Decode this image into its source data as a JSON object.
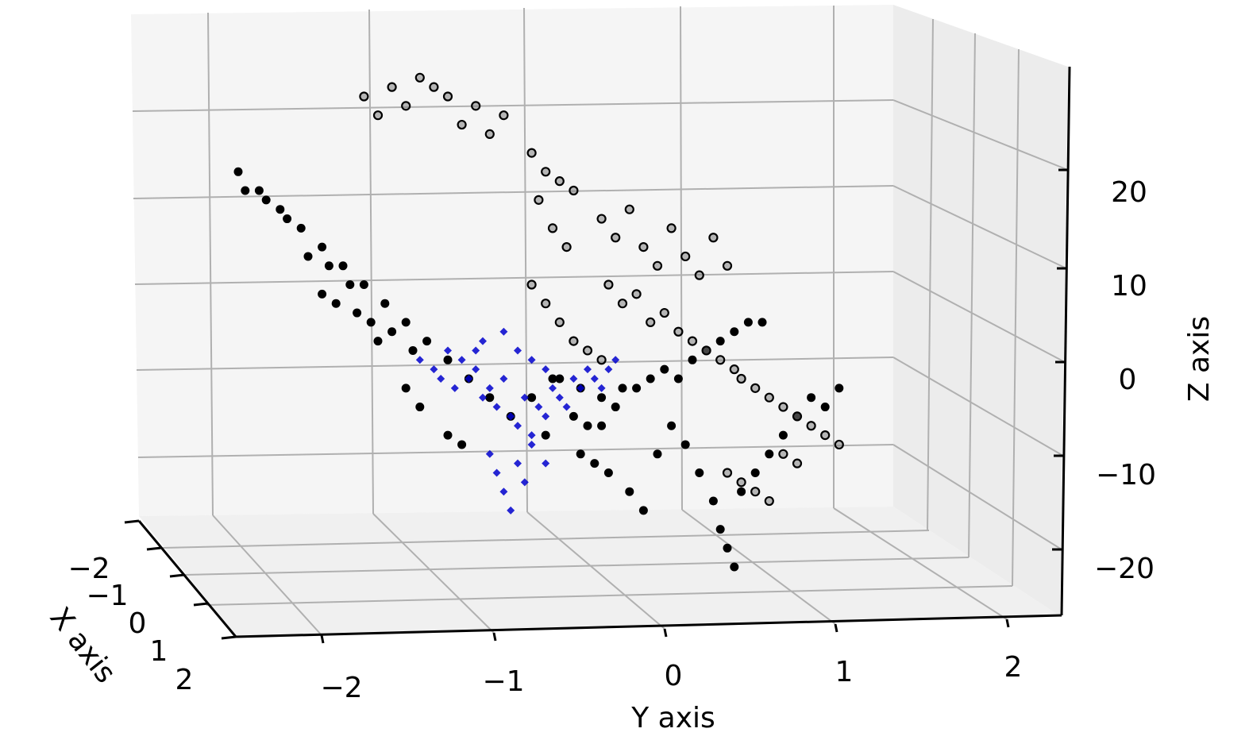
{
  "chart_data": {
    "type": "scatter",
    "projection": "3d",
    "title": "",
    "xlabel": "X axis",
    "ylabel": "Y axis",
    "zlabel": "Z axis",
    "xlim": [
      -2.5,
      2.5
    ],
    "ylim": [
      -2.5,
      2.5
    ],
    "zlim": [
      -27,
      28
    ],
    "x_ticks": [
      {
        "value": -2,
        "label": "−2"
      },
      {
        "value": -1,
        "label": "−1"
      },
      {
        "value": 0,
        "label": "0"
      },
      {
        "value": 1,
        "label": "1"
      },
      {
        "value": 2,
        "label": "2"
      }
    ],
    "y_ticks": [
      {
        "value": -2,
        "label": "−2"
      },
      {
        "value": -1,
        "label": "−1"
      },
      {
        "value": 0,
        "label": "0"
      },
      {
        "value": 1,
        "label": "1"
      },
      {
        "value": 2,
        "label": "2"
      }
    ],
    "z_ticks": [
      {
        "value": 20,
        "label": "20"
      },
      {
        "value": 10,
        "label": "10"
      },
      {
        "value": 0,
        "label": "0"
      },
      {
        "value": -10,
        "label": "−10"
      },
      {
        "value": -20,
        "label": "−20"
      }
    ],
    "grid": true,
    "legend": "none",
    "series": [
      {
        "marker": "circle",
        "color": "#000000",
        "points": [
          [
            0,
            -2.5,
            22
          ],
          [
            0,
            -2.35,
            20
          ],
          [
            0,
            -2.2,
            18
          ],
          [
            0,
            -2.05,
            16
          ],
          [
            0,
            -1.9,
            14
          ],
          [
            0,
            -1.75,
            12
          ],
          [
            0,
            -1.6,
            10
          ],
          [
            0,
            -1.45,
            8
          ],
          [
            0,
            -1.3,
            6
          ],
          [
            0,
            -1.15,
            4
          ],
          [
            0,
            -1.0,
            2
          ],
          [
            0,
            -0.85,
            0
          ],
          [
            0,
            -2.45,
            20
          ],
          [
            0,
            -2.3,
            19
          ],
          [
            0,
            -2.15,
            17
          ],
          [
            0,
            -2.0,
            13
          ],
          [
            0,
            -1.85,
            12
          ],
          [
            0,
            -1.7,
            10
          ],
          [
            0,
            -1.55,
            6
          ],
          [
            0,
            -1.4,
            5
          ],
          [
            0,
            -1.25,
            3
          ],
          [
            0,
            -1.9,
            9
          ],
          [
            0,
            -1.8,
            8
          ],
          [
            0,
            -1.65,
            7
          ],
          [
            0,
            -1.5,
            4
          ],
          [
            0,
            -1.3,
            -1
          ],
          [
            0,
            -1.2,
            -3
          ],
          [
            0,
            -1.0,
            -6
          ],
          [
            0,
            -0.9,
            -7
          ],
          [
            0,
            -0.7,
            -2
          ],
          [
            0,
            -0.55,
            -4
          ],
          [
            0,
            -0.4,
            -2
          ],
          [
            0,
            -0.3,
            -6
          ],
          [
            0,
            -0.25,
            0
          ],
          [
            0,
            -0.1,
            -4
          ],
          [
            0,
            0.0,
            -5
          ],
          [
            0,
            0.1,
            -5
          ],
          [
            0,
            0.2,
            -3
          ],
          [
            0,
            -0.05,
            -8
          ],
          [
            0,
            0.05,
            -9
          ],
          [
            0,
            0.15,
            -10
          ],
          [
            0,
            0.3,
            -12
          ],
          [
            0,
            0.4,
            -14
          ],
          [
            0,
            0.5,
            -8
          ],
          [
            0,
            0.6,
            -5
          ],
          [
            0,
            0.7,
            -7
          ],
          [
            0,
            0.8,
            -10
          ],
          [
            0,
            0.9,
            -13
          ],
          [
            0,
            0.95,
            -16
          ],
          [
            0,
            1.0,
            -18
          ],
          [
            0,
            1.05,
            -20
          ],
          [
            0,
            1.1,
            -12
          ],
          [
            0,
            1.2,
            -10
          ],
          [
            0,
            1.3,
            -8
          ],
          [
            0,
            1.4,
            -6
          ],
          [
            0,
            1.5,
            -4
          ],
          [
            0,
            1.6,
            -2
          ],
          [
            0,
            1.7,
            -3
          ],
          [
            0,
            1.8,
            -1
          ],
          [
            0,
            0.35,
            -1
          ],
          [
            0,
            0.45,
            0
          ],
          [
            0,
            0.55,
            1
          ],
          [
            0,
            0.65,
            0
          ],
          [
            0,
            0.75,
            2
          ],
          [
            0,
            0.85,
            3
          ],
          [
            0,
            0.95,
            4
          ],
          [
            0,
            1.05,
            5
          ],
          [
            0,
            1.15,
            6
          ],
          [
            0,
            1.25,
            6
          ],
          [
            0,
            -0.2,
            0
          ],
          [
            0,
            -0.05,
            -1
          ],
          [
            0,
            0.1,
            -2
          ],
          [
            0,
            0.25,
            -1
          ]
        ]
      },
      {
        "marker": "ring",
        "color": "#000000",
        "points": [
          [
            0,
            -1.6,
            30
          ],
          [
            0,
            -1.4,
            31
          ],
          [
            0,
            -1.2,
            32
          ],
          [
            0,
            -1.0,
            30
          ],
          [
            0,
            -0.8,
            29
          ],
          [
            0,
            -0.6,
            28
          ],
          [
            0,
            -1.5,
            28
          ],
          [
            0,
            -1.3,
            29
          ],
          [
            0,
            -1.1,
            31
          ],
          [
            0,
            -0.9,
            27
          ],
          [
            0,
            -0.7,
            26
          ],
          [
            0,
            -0.4,
            24
          ],
          [
            0,
            -0.3,
            22
          ],
          [
            0,
            -0.2,
            21
          ],
          [
            0,
            -0.35,
            19
          ],
          [
            0,
            -0.1,
            20
          ],
          [
            0,
            -0.25,
            16
          ],
          [
            0,
            -0.15,
            14
          ],
          [
            0,
            0.1,
            17
          ],
          [
            0,
            0.2,
            15
          ],
          [
            0,
            0.3,
            18
          ],
          [
            0,
            0.4,
            14
          ],
          [
            0,
            0.5,
            12
          ],
          [
            0,
            0.6,
            16
          ],
          [
            0,
            0.7,
            13
          ],
          [
            0,
            0.8,
            11
          ],
          [
            0,
            0.9,
            15
          ],
          [
            0,
            1.0,
            12
          ],
          [
            0,
            0.15,
            10
          ],
          [
            0,
            0.25,
            8
          ],
          [
            0,
            0.35,
            9
          ],
          [
            0,
            0.45,
            6
          ],
          [
            0,
            0.55,
            7
          ],
          [
            0,
            0.65,
            5
          ],
          [
            0,
            0.75,
            4
          ],
          [
            0,
            0.85,
            3
          ],
          [
            0,
            0.95,
            2
          ],
          [
            0,
            1.05,
            1
          ],
          [
            0,
            -0.4,
            10
          ],
          [
            0,
            -0.3,
            8
          ],
          [
            0,
            -0.2,
            6
          ],
          [
            0,
            -0.1,
            4
          ],
          [
            0,
            0.0,
            3
          ],
          [
            0,
            0.1,
            2
          ],
          [
            0,
            1.1,
            0
          ],
          [
            0,
            1.2,
            -1
          ],
          [
            0,
            1.3,
            -2
          ],
          [
            0,
            1.4,
            -3
          ],
          [
            0,
            1.5,
            -4
          ],
          [
            0,
            1.6,
            -5
          ],
          [
            0,
            1.7,
            -6
          ],
          [
            0,
            1.8,
            -7
          ],
          [
            0,
            1.0,
            -10
          ],
          [
            0,
            1.1,
            -11
          ],
          [
            0,
            1.2,
            -12
          ],
          [
            0,
            1.3,
            -13
          ],
          [
            0,
            1.4,
            -8
          ],
          [
            0,
            1.5,
            -9
          ]
        ]
      },
      {
        "marker": "diamond",
        "color": "#0000cc",
        "points": [
          [
            0,
            -1.2,
            2
          ],
          [
            0,
            -1.1,
            1
          ],
          [
            0,
            -1.05,
            0
          ],
          [
            0,
            -1.0,
            3
          ],
          [
            0,
            -0.95,
            -1
          ],
          [
            0,
            -0.9,
            2
          ],
          [
            0,
            -0.85,
            0
          ],
          [
            0,
            -0.8,
            1
          ],
          [
            0,
            -0.75,
            -2
          ],
          [
            0,
            -0.7,
            -1
          ],
          [
            0,
            -0.65,
            -3
          ],
          [
            0,
            -0.6,
            0
          ],
          [
            0,
            -0.55,
            -4
          ],
          [
            0,
            -0.5,
            -5
          ],
          [
            0,
            -0.45,
            -2
          ],
          [
            0,
            -0.4,
            -6
          ],
          [
            0,
            -0.35,
            -3
          ],
          [
            0,
            -0.3,
            -4
          ],
          [
            0,
            -0.25,
            -1
          ],
          [
            0,
            -0.2,
            -2
          ],
          [
            0,
            -0.15,
            -3
          ],
          [
            0,
            -0.1,
            0
          ],
          [
            0,
            -0.05,
            -1
          ],
          [
            0,
            0.0,
            1
          ],
          [
            0,
            0.05,
            0
          ],
          [
            0,
            0.1,
            -1
          ],
          [
            0,
            0.15,
            1
          ],
          [
            0,
            0.2,
            2
          ],
          [
            0,
            -0.7,
            -8
          ],
          [
            0,
            -0.65,
            -10
          ],
          [
            0,
            -0.6,
            -12
          ],
          [
            0,
            -0.55,
            -14
          ],
          [
            0,
            -0.5,
            -9
          ],
          [
            0,
            -0.45,
            -11
          ],
          [
            0,
            -0.4,
            -7
          ],
          [
            0,
            -0.3,
            -9
          ],
          [
            0,
            -0.8,
            3
          ],
          [
            0,
            -0.75,
            4
          ],
          [
            0,
            -0.6,
            5
          ],
          [
            0,
            -0.5,
            3
          ],
          [
            0,
            -0.4,
            2
          ],
          [
            0,
            -0.3,
            1
          ]
        ]
      }
    ]
  }
}
